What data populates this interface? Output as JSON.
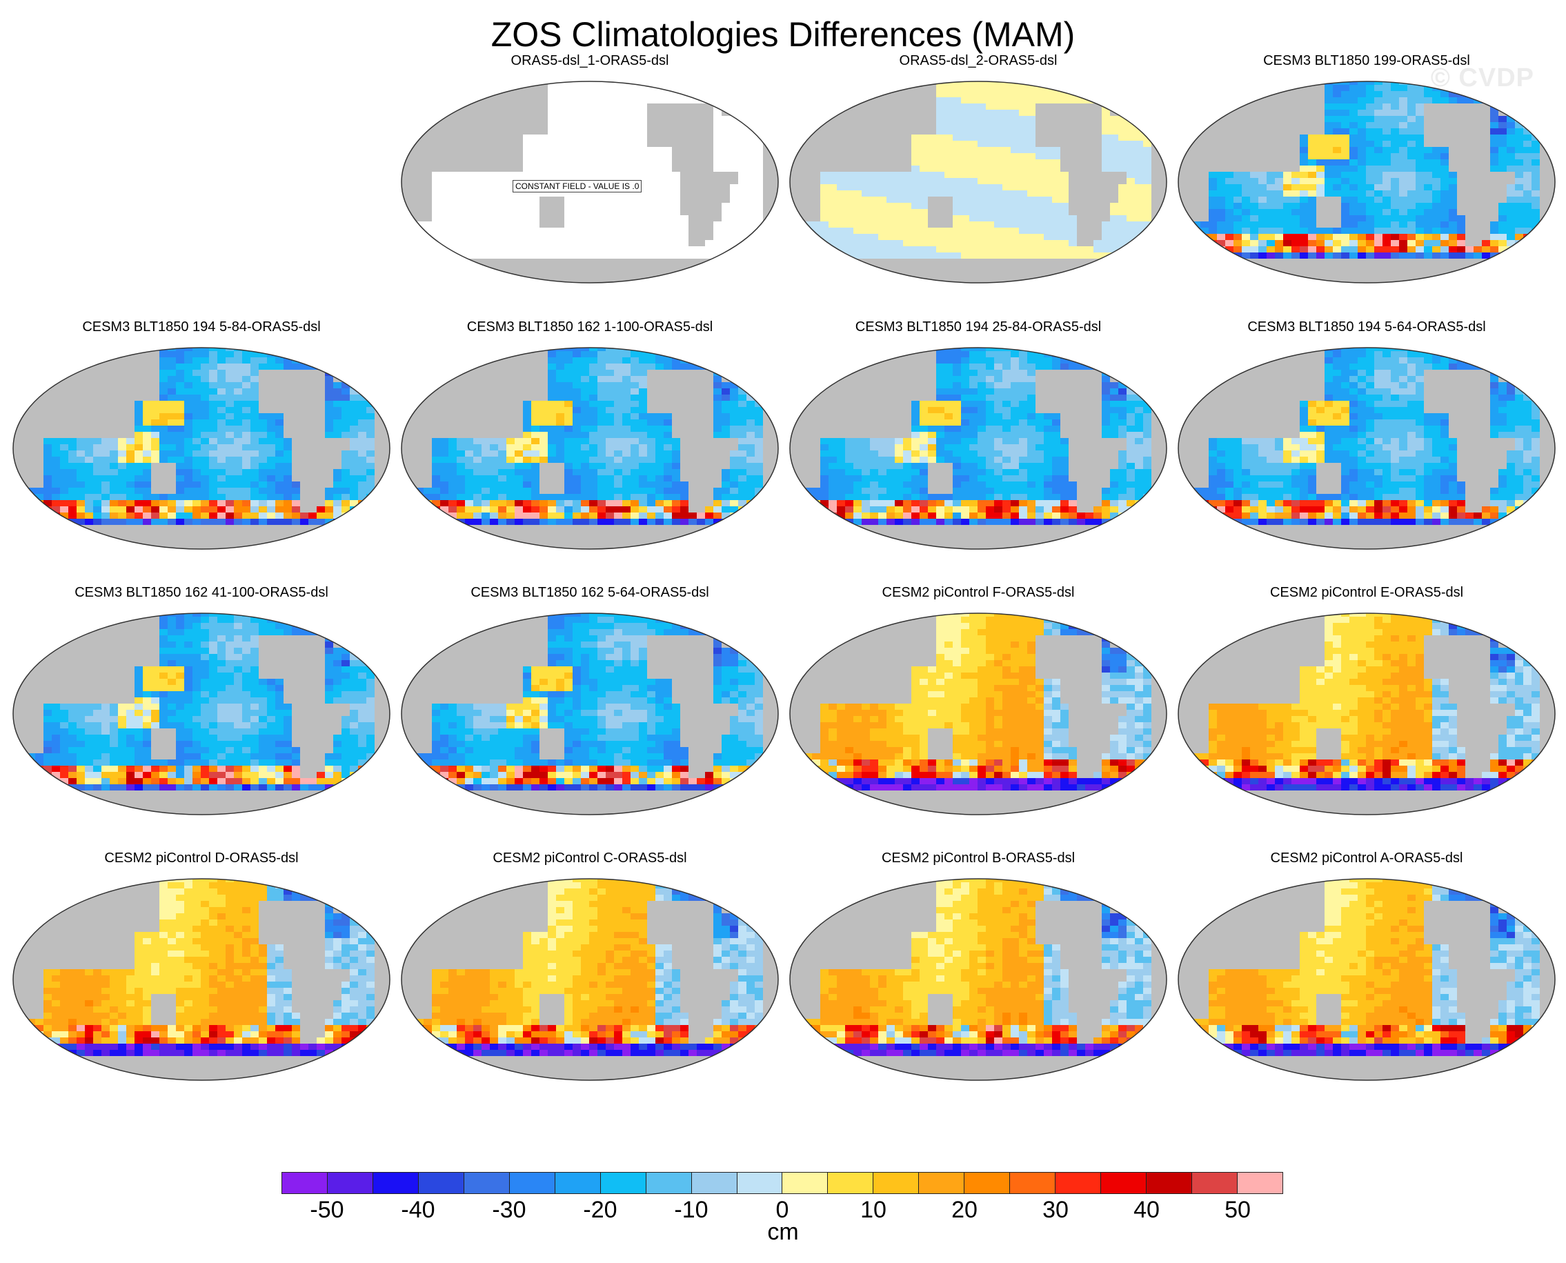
{
  "title": "ZOS Climatologies Differences (MAM)",
  "watermark": "© CVDP",
  "panels": [
    {
      "title": "ORAS5-dsl_1-ORAS5-dsl",
      "pattern": "constant",
      "label": "CONSTANT FIELD - VALUE IS .0"
    },
    {
      "title": "ORAS5-dsl_2-ORAS5-dsl",
      "pattern": "near-zero"
    },
    {
      "title": "CESM3 BLT1850 199-ORAS5-dsl",
      "pattern": "cesm3"
    },
    {
      "title": "CESM3 BLT1850 194 5-84-ORAS5-dsl",
      "pattern": "cesm3"
    },
    {
      "title": "CESM3 BLT1850 162 1-100-ORAS5-dsl",
      "pattern": "cesm3"
    },
    {
      "title": "CESM3 BLT1850 194 25-84-ORAS5-dsl",
      "pattern": "cesm3"
    },
    {
      "title": "CESM3 BLT1850 194 5-64-ORAS5-dsl",
      "pattern": "cesm3"
    },
    {
      "title": "CESM3 BLT1850 162 41-100-ORAS5-dsl",
      "pattern": "cesm3"
    },
    {
      "title": "CESM3 BLT1850 162 5-64-ORAS5-dsl",
      "pattern": "cesm3"
    },
    {
      "title": "CESM2 piControl F-ORAS5-dsl",
      "pattern": "cesm2"
    },
    {
      "title": "CESM2 piControl E-ORAS5-dsl",
      "pattern": "cesm2"
    },
    {
      "title": "CESM2 piControl D-ORAS5-dsl",
      "pattern": "cesm2"
    },
    {
      "title": "CESM2 piControl C-ORAS5-dsl",
      "pattern": "cesm2"
    },
    {
      "title": "CESM2 piControl B-ORAS5-dsl",
      "pattern": "cesm2"
    },
    {
      "title": "CESM2 piControl A-ORAS5-dsl",
      "pattern": "cesm2"
    }
  ],
  "colorbar": {
    "units": "cm",
    "ticks": [
      "-50",
      "-40",
      "-30",
      "-20",
      "-10",
      "0",
      "10",
      "20",
      "30",
      "40",
      "50"
    ],
    "colors": [
      "#8a1ff0",
      "#5a1ee8",
      "#1a10f5",
      "#2a48e0",
      "#3a72e6",
      "#2a86f5",
      "#1fa2f5",
      "#10bef5",
      "#5ac0f0",
      "#9ccdee",
      "#c0e2f6",
      "#fff7a0",
      "#ffe040",
      "#ffc21a",
      "#ffa515",
      "#ff8a00",
      "#ff6a10",
      "#ff2a10",
      "#ee0000",
      "#c80000",
      "#dd4444",
      "#ffb0b0"
    ]
  },
  "land_color": "#bebebe"
}
